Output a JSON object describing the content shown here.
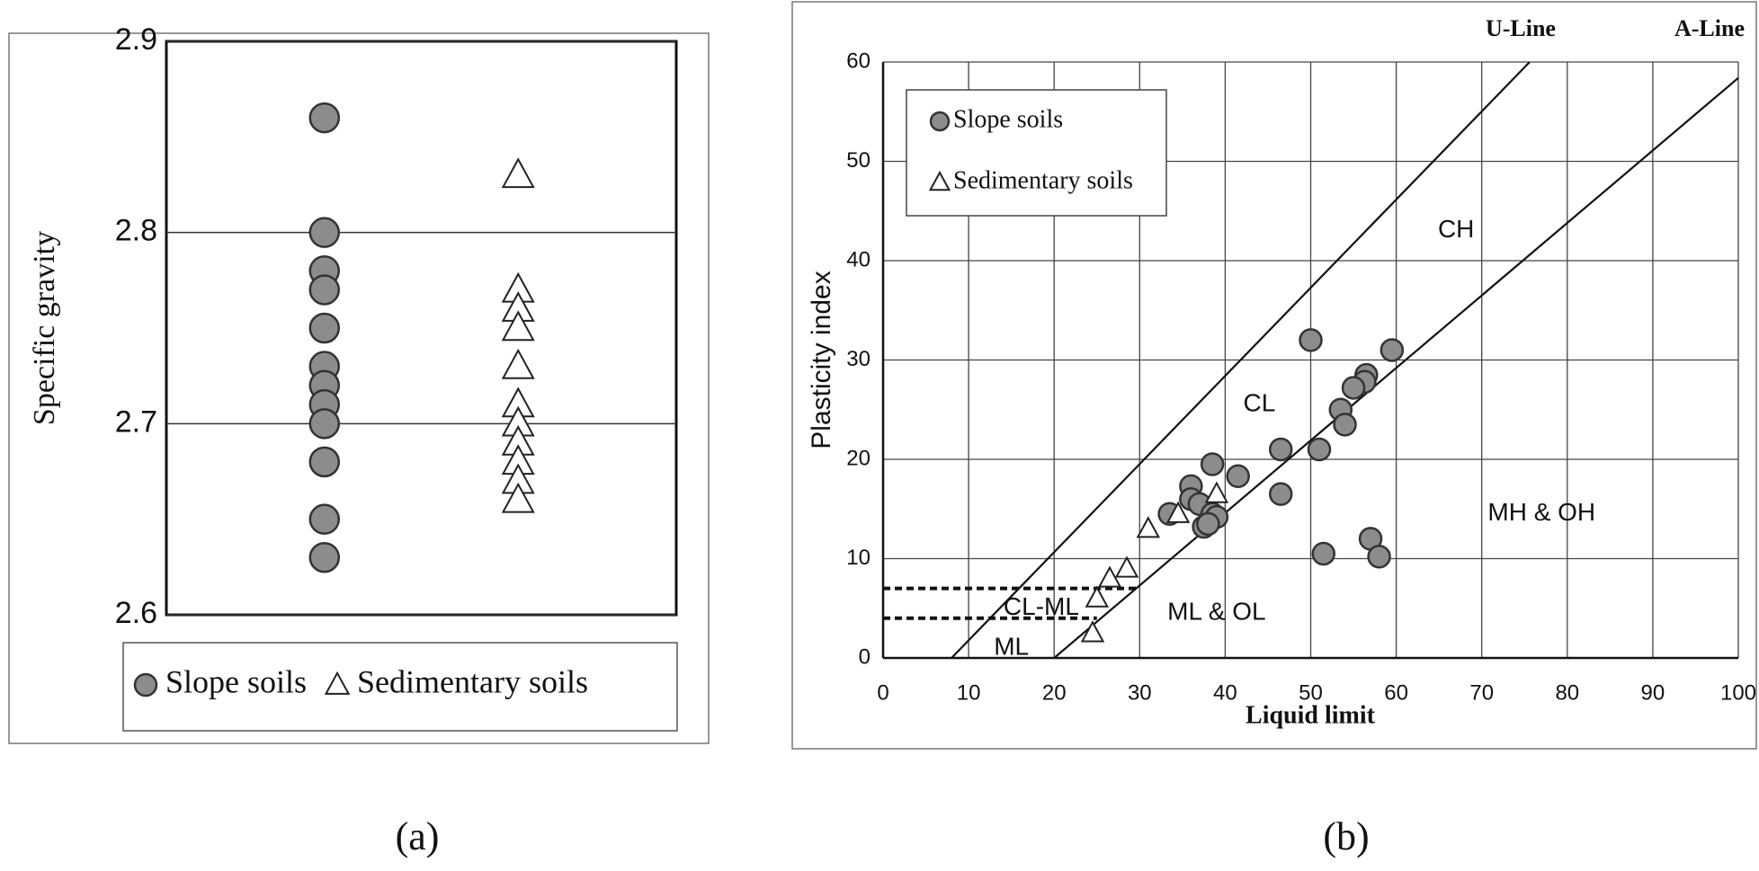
{
  "chart_data": [
    {
      "type": "strip",
      "caption": "(a)",
      "y_label": "Specific gravity",
      "ylim": [
        2.6,
        2.9
      ],
      "yticks": [
        2.6,
        2.7,
        2.8,
        2.9
      ],
      "grid": true,
      "legend": "bottom",
      "series": [
        {
          "name": "Slope soils",
          "marker": "circle",
          "color": "#8c8c8c",
          "values": [
            2.86,
            2.8,
            2.78,
            2.77,
            2.75,
            2.73,
            2.72,
            2.71,
            2.7,
            2.68,
            2.65,
            2.63
          ]
        },
        {
          "name": "Sedimentary soils",
          "marker": "triangle",
          "color": "#ffffff",
          "values": [
            2.83,
            2.77,
            2.76,
            2.75,
            2.73,
            2.71,
            2.7,
            2.69,
            2.68,
            2.67,
            2.66
          ]
        }
      ]
    },
    {
      "type": "scatter",
      "caption": "(b)",
      "x_label": "Liquid limit",
      "y_label": "Plasticity index",
      "xlim": [
        0,
        100
      ],
      "xticks": [
        0,
        10,
        20,
        30,
        40,
        50,
        60,
        70,
        80,
        90,
        100
      ],
      "ylim": [
        0,
        60
      ],
      "yticks": [
        0,
        10,
        20,
        30,
        40,
        50,
        60
      ],
      "grid": true,
      "legend": "top-left",
      "series": [
        {
          "name": "Slope soils",
          "marker": "circle",
          "color": "#8c8c8c",
          "x": [
            50,
            59.5,
            56.5,
            56.3,
            55,
            53.5,
            54,
            46.5,
            51,
            38.5,
            41.5,
            36,
            46.5,
            36,
            37,
            38.5,
            39,
            33.5,
            37.5,
            38,
            57,
            58,
            51.5
          ],
          "values": [
            32,
            31,
            28.5,
            27.8,
            27.2,
            25,
            23.5,
            21,
            21,
            19.5,
            18.3,
            17.3,
            16.5,
            16,
            15.5,
            14.5,
            14.2,
            14.5,
            13.2,
            13.5,
            12,
            10.2,
            10.5
          ]
        },
        {
          "name": "Sedimentary soils",
          "marker": "triangle",
          "color": "#ffffff",
          "x": [
            39,
            34.5,
            31,
            28.5,
            26.5,
            25,
            24.5
          ],
          "values": [
            16.5,
            14.5,
            13,
            9,
            8,
            6,
            2.5
          ]
        }
      ],
      "lines": [
        {
          "name": "U-Line",
          "x": [
            8,
            75.6
          ],
          "y": [
            0,
            60
          ]
        },
        {
          "name": "A-Line",
          "x": [
            20,
            100
          ],
          "y": [
            0,
            58.4
          ]
        }
      ],
      "dashed_lines": [
        {
          "x": [
            0,
            30
          ],
          "y": [
            7,
            7
          ]
        },
        {
          "x": [
            0,
            25
          ],
          "y": [
            4,
            4
          ]
        }
      ],
      "annotations": [
        "CH",
        "CL",
        "MH & OH",
        "ML & OL",
        "CL-ML",
        "ML"
      ]
    }
  ]
}
